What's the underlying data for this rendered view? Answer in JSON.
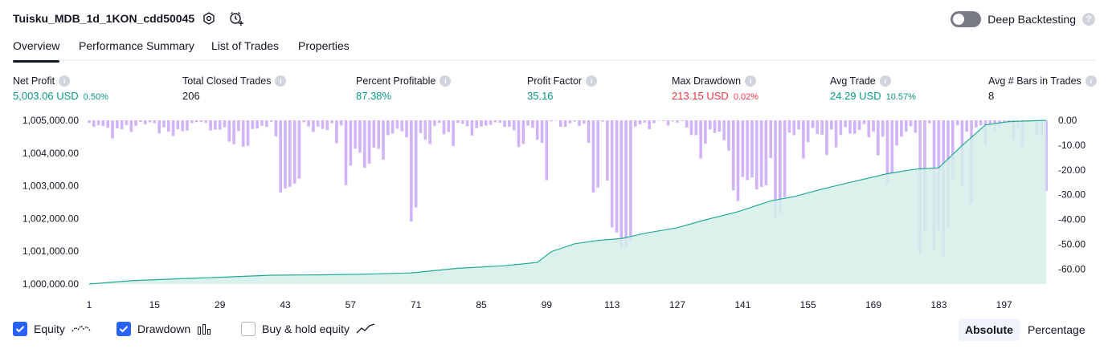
{
  "header": {
    "title": "Tuisku_MDB_1d_1KON_cdd50045",
    "deep_backtesting_label": "Deep Backtesting",
    "help_glyph": "?"
  },
  "tabs": [
    {
      "label": "Overview"
    },
    {
      "label": "Performance Summary"
    },
    {
      "label": "List of Trades"
    },
    {
      "label": "Properties"
    }
  ],
  "metrics": [
    {
      "label": "Net Profit",
      "value": "5,003.06 USD",
      "pct": "0.50%",
      "color": "green"
    },
    {
      "label": "Total Closed Trades",
      "value": "206",
      "pct": "",
      "color": "dark"
    },
    {
      "label": "Percent Profitable",
      "value": "87.38%",
      "pct": "",
      "color": "green"
    },
    {
      "label": "Profit Factor",
      "value": "35.16",
      "pct": "",
      "color": "green"
    },
    {
      "label": "Max Drawdown",
      "value": "213.15 USD",
      "pct": "0.02%",
      "color": "red"
    },
    {
      "label": "Avg Trade",
      "value": "24.29 USD",
      "pct": "10.57%",
      "color": "green"
    },
    {
      "label": "Avg # Bars in Trades",
      "value": "8",
      "pct": "",
      "color": "dark"
    }
  ],
  "info_glyph": "i",
  "legend": {
    "equity": "Equity",
    "drawdown": "Drawdown",
    "buyhold": "Buy & hold equity"
  },
  "mode": {
    "absolute": "Absolute",
    "percentage": "Percentage"
  },
  "colors": {
    "equity_line": "#22ab94",
    "equity_fill": "#d5efe9",
    "drawdown_bar": "#d1b3f7",
    "accent": "#2962ff"
  },
  "chart_data": {
    "type": "area",
    "x_ticks": [
      1,
      15,
      29,
      43,
      57,
      71,
      85,
      99,
      113,
      127,
      141,
      155,
      169,
      183,
      197
    ],
    "x_range": [
      1,
      206
    ],
    "left_axis": {
      "ticks": [
        "1,005,000.00",
        "1,004,000.00",
        "1,003,000.00",
        "1,002,000.00",
        "1,001,000.00",
        "1,000,000.00"
      ],
      "range": [
        1000000,
        1005000
      ]
    },
    "right_axis": {
      "ticks": [
        "0.00",
        "-10.00",
        "-20.00",
        "-30.00",
        "-40.00",
        "-50.00",
        "-60.00"
      ],
      "range": [
        -66,
        0
      ]
    },
    "series": [
      {
        "name": "Equity",
        "points": [
          [
            1,
            1000000
          ],
          [
            10,
            1000100
          ],
          [
            20,
            1000160
          ],
          [
            30,
            1000210
          ],
          [
            40,
            1000270
          ],
          [
            50,
            1000280
          ],
          [
            60,
            1000300
          ],
          [
            70,
            1000340
          ],
          [
            80,
            1000480
          ],
          [
            90,
            1000560
          ],
          [
            97,
            1000660
          ],
          [
            100,
            1000990
          ],
          [
            105,
            1001230
          ],
          [
            110,
            1001330
          ],
          [
            115,
            1001390
          ],
          [
            120,
            1001550
          ],
          [
            127,
            1001720
          ],
          [
            133,
            1001960
          ],
          [
            140,
            1002210
          ],
          [
            147,
            1002540
          ],
          [
            152,
            1002670
          ],
          [
            158,
            1002900
          ],
          [
            165,
            1003140
          ],
          [
            172,
            1003370
          ],
          [
            178,
            1003510
          ],
          [
            183,
            1003550
          ],
          [
            188,
            1004230
          ],
          [
            193,
            1004860
          ],
          [
            198,
            1004960
          ],
          [
            206,
            1005000
          ]
        ]
      },
      {
        "name": "Drawdown",
        "values": [
          -1.0,
          -2.6,
          -2.0,
          -2.3,
          -3.0,
          -7.3,
          -3.2,
          -3.6,
          -1.9,
          -4.7,
          -2.2,
          -0.6,
          -1.6,
          -0.8,
          -1.1,
          -5.3,
          -2.8,
          -4.6,
          -6.3,
          -3.6,
          -4.4,
          -4.1,
          -1.1,
          -0.7,
          -0.7,
          -1.0,
          -4.1,
          -3.7,
          -3.8,
          -2.8,
          -8.6,
          -9.6,
          -4.3,
          -10.6,
          -10.3,
          -3.5,
          -3.3,
          -2.2,
          -2.6,
          -0.6,
          -6.5,
          -29.1,
          -27.5,
          -26.8,
          -25.5,
          -23.5,
          -0.8,
          -2.5,
          -4.7,
          -2.5,
          -3.5,
          -3.9,
          -1.2,
          -9.2,
          -2.1,
          -26.1,
          -18.2,
          -11.4,
          -13.0,
          -19.2,
          -17.5,
          -11.0,
          -11.5,
          -15.9,
          -6.0,
          -5.3,
          -3.4,
          -4.4,
          -6.8,
          -40.8,
          -35.1,
          -5.1,
          -7.8,
          -9.6,
          -2.2,
          -1.0,
          -5.6,
          -4.7,
          -10.3,
          -1.0,
          -1.4,
          -2.4,
          -6.1,
          -3.1,
          -2.5,
          -2.2,
          -1.8,
          -0.8,
          -1.0,
          -2.6,
          -2.6,
          -4.0,
          -10.8,
          -9.5,
          -2.1,
          -3.0,
          -7.8,
          -9.1,
          -24.1,
          -0.4,
          -0.2,
          -2.6,
          -2.6,
          -1.2,
          -0.5,
          -2.2,
          -1.3,
          -9.1,
          -29.1,
          -27.1,
          -0.5,
          -24.3,
          -43.2,
          -45.2,
          -51.3,
          -51.3,
          -49.0,
          -2.5,
          -1.6,
          -0.9,
          -3.6,
          -1.1,
          -0.1,
          -0.3,
          -2.1,
          -0.4,
          -0.9,
          -0.3,
          -2.9,
          -5.9,
          -6.0,
          -15.4,
          -9.4,
          -3.7,
          -5.1,
          -4.6,
          -8.0,
          -12.2,
          -28.2,
          -32.5,
          -22.9,
          -24.1,
          -23.0,
          -27.9,
          -26.9,
          -26.2,
          -15.2,
          -39.1,
          -37.5,
          -31.1,
          -5.0,
          -6.0,
          -3.7,
          -15.4,
          -8.8,
          -3.1,
          -5.5,
          -5.8,
          -14.0,
          -3.7,
          -10.9,
          -5.9,
          -2.7,
          -5.3,
          -5.4,
          -3.9,
          -1.5,
          -6.8,
          -4.6,
          -14.1,
          -6.6,
          -25.5,
          -21.4,
          -10.2,
          -6.6,
          -4.5,
          -2.4,
          -5.0,
          -54.0,
          -44.3,
          -1.2,
          -52.6,
          -44.4,
          -54.6,
          -43.1,
          -23.9,
          -2.0,
          -26.3,
          -4.6,
          -33.7,
          -2.9,
          -2.0,
          -9.9,
          -2.1,
          -4.2,
          -2.9,
          -0.8,
          -1.4,
          -7.9,
          -3.3,
          -10.7,
          -0.9,
          -0.4,
          -5.9,
          -6.4,
          -28.5
        ]
      }
    ],
    "legend_position": "bottom-left",
    "grid": false
  }
}
